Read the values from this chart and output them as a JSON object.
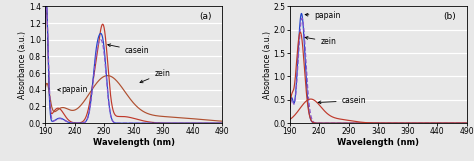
{
  "xlim": [
    190,
    490
  ],
  "xticks": [
    190,
    240,
    290,
    340,
    390,
    440,
    490
  ],
  "xlabel": "Wavelength (nm)",
  "ylabel": "Absorbance (a.u.)",
  "panel_a": {
    "label": "(a)",
    "ylim": [
      0,
      1.4
    ],
    "yticks": [
      0.0,
      0.2,
      0.4,
      0.6,
      0.8,
      1.0,
      1.2,
      1.4
    ]
  },
  "panel_b": {
    "label": "(b)",
    "ylim": [
      0,
      2.5
    ],
    "yticks": [
      0.0,
      0.5,
      1.0,
      1.5,
      2.0,
      2.5
    ]
  },
  "bg_color": "#e8e8e8",
  "grid_color": "#ffffff",
  "font_size": 6.0,
  "colors": {
    "casein_red": "#c0392b",
    "zein_brown": "#b05030",
    "papain_blue": "#2244cc",
    "papain_purple_dash": "#8855cc"
  }
}
